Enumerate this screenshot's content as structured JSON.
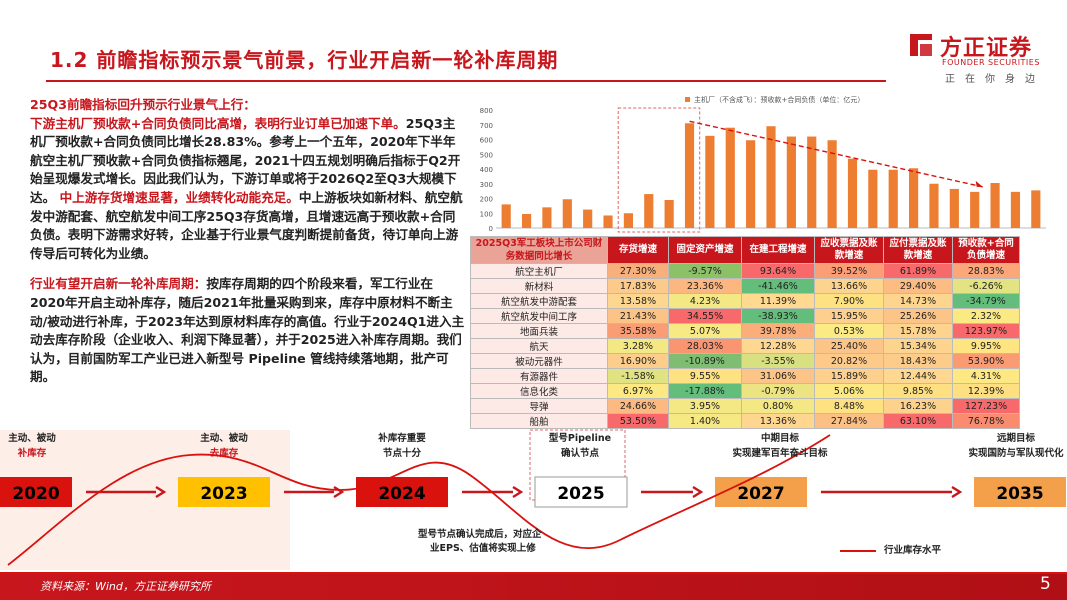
{
  "header": {
    "title": "1.2 前瞻指标预示景气前景，行业开启新一轮补库周期",
    "logo_name": "方正证券",
    "logo_en": "FOUNDER SECURITIES",
    "slogan": "正在你身边"
  },
  "text": {
    "p1_heading": "25Q3前瞻指标回升预示行业景气上行：",
    "p1_red": "下游主机厂预收款+合同负债同比高增，表明行业订单已加速下单。",
    "p1_body": "25Q3主机厂预收款+合同负债同比增长28.83%。参考上一个五年，2020年下半年航空主机厂预收款+合同负债指标翘尾，2021十四五规划明确后指标于Q2开始呈现爆发式增长。因此我们认为，下游订单或将于2026Q2至Q3大规模下达。",
    "p2_red": "中上游存货增速显著，业绩转化动能充足。",
    "p2_body": "中上游板块如新材料、航空航发中游配套、航空航发中间工序25Q3存货高增，且增速远高于预收款+合同负债。表明下游需求好转，企业基于行业景气度判断提前备货，待订单向上游传导后可转化为业绩。",
    "p3_red": "行业有望开启新一轮补库周期：",
    "p3_body": "按库存周期的四个阶段来看，军工行业在2020年开启主动补库存，随后2021年批量采购到来，库存中原材料不断主动/被动进行补库，于2023年达到原材料库存的高值。行业于2024Q1进入主动去库存阶段（企业收入、利润下降显著），并于2025进入补库存周期。我们认为，目前国防军工产业已进入新型号 Pipeline 管线持续落地期，批产可期。"
  },
  "chart_data": {
    "type": "bar",
    "legend": "主机厂（不含成飞）：预收款+合同负债（单位：亿元）",
    "color": "#ed7d31",
    "values": [
      160,
      95,
      140,
      195,
      125,
      85,
      100,
      230,
      190,
      710,
      625,
      680,
      595,
      690,
      620,
      620,
      595,
      470,
      395,
      395,
      405,
      300,
      265,
      245,
      305,
      245,
      255
    ],
    "ylim": [
      0,
      800
    ],
    "yticks": [
      0,
      100,
      200,
      300,
      400,
      500,
      600,
      700,
      800
    ]
  },
  "table": {
    "header": [
      "2025Q3军工板块上市公司财务数据同比增长",
      "存货增速",
      "固定资产增速",
      "在建工程增速",
      "应收票据及账款增速",
      "应付票据及账款增速",
      "预收款+合同负债增速"
    ],
    "rows": [
      {
        "label": "航空主机厂",
        "cells": [
          "27.30%",
          "-9.57%",
          "93.64%",
          "39.52%",
          "61.89%",
          "28.83%"
        ],
        "colors": [
          "#f7b07c",
          "#8cc168",
          "#f8696b",
          "#fb9d75",
          "#f8696b",
          "#fba77a"
        ]
      },
      {
        "label": "新材料",
        "cells": [
          "17.83%",
          "23.36%",
          "-41.46%",
          "13.66%",
          "29.40%",
          "-6.26%"
        ],
        "colors": [
          "#fccb8c",
          "#fcb67f",
          "#63be7b",
          "#fdd48e",
          "#fcbc82",
          "#e3e383"
        ]
      },
      {
        "label": "航空航发中游配套",
        "cells": [
          "13.58%",
          "4.23%",
          "11.39%",
          "7.90%",
          "14.73%",
          "-34.79%"
        ],
        "colors": [
          "#fdd78f",
          "#f4e884",
          "#fed98f",
          "#fee282",
          "#fed58f",
          "#63be7b"
        ]
      },
      {
        "label": "航空航发中间工序",
        "cells": [
          "21.43%",
          "34.55%",
          "-38.93%",
          "15.95%",
          "25.26%",
          "2.32%"
        ],
        "colors": [
          "#fcc387",
          "#f8696b",
          "#63be7b",
          "#fdd08d",
          "#fcc487",
          "#fbe983"
        ]
      },
      {
        "label": "地面兵装",
        "cells": [
          "35.58%",
          "5.07%",
          "39.78%",
          "0.53%",
          "15.78%",
          "123.97%"
        ],
        "colors": [
          "#fa9c74",
          "#f7e983",
          "#fbad7a",
          "#fcea84",
          "#fdd38e",
          "#f8696b"
        ]
      },
      {
        "label": "航天",
        "cells": [
          "3.28%",
          "28.03%",
          "12.28%",
          "25.40%",
          "15.34%",
          "9.95%"
        ],
        "colors": [
          "#f3e883",
          "#fa9572",
          "#fed890",
          "#fcc487",
          "#fdd48e",
          "#fee582"
        ]
      },
      {
        "label": "被动元器件",
        "cells": [
          "16.90%",
          "-10.89%",
          "-3.55%",
          "20.82%",
          "18.43%",
          "53.90%"
        ],
        "colors": [
          "#fdce8b",
          "#7fbe72",
          "#d9e082",
          "#fdca8a",
          "#fdcc8b",
          "#fb9b74"
        ]
      },
      {
        "label": "有源器件",
        "cells": [
          "-1.58%",
          "9.55%",
          "31.06%",
          "15.89%",
          "12.44%",
          "4.31%"
        ],
        "colors": [
          "#e1e383",
          "#fee282",
          "#fcc487",
          "#fdd08d",
          "#fed890",
          "#fde883"
        ]
      },
      {
        "label": "信息化类",
        "cells": [
          "6.97%",
          "-17.88%",
          "-0.79%",
          "5.06%",
          "9.85%",
          "12.39%"
        ],
        "colors": [
          "#fde983",
          "#63be7b",
          "#ece483",
          "#fde983",
          "#fee082",
          "#fee082"
        ]
      },
      {
        "label": "导弹",
        "cells": [
          "24.66%",
          "3.95%",
          "0.80%",
          "8.48%",
          "16.23%",
          "127.23%"
        ],
        "colors": [
          "#fcba82",
          "#f4e884",
          "#f3e883",
          "#fee282",
          "#fdd28d",
          "#f8696b"
        ]
      },
      {
        "label": "船舶",
        "cells": [
          "53.50%",
          "1.40%",
          "13.36%",
          "27.84%",
          "63.10%",
          "76.78%"
        ],
        "colors": [
          "#f8696b",
          "#f6e883",
          "#fed690",
          "#fcc085",
          "#f8696b",
          "#f98b6f"
        ]
      }
    ]
  },
  "timeline": {
    "years": [
      {
        "year": "2020",
        "above": [
          "主动、被动",
          "补库存"
        ],
        "fill": "#d9120e",
        "text": "#000000"
      },
      {
        "year": "2023",
        "above": [
          "主动、被动",
          "去库存"
        ],
        "fill": "#ffc000",
        "text": "#000000"
      },
      {
        "year": "2024",
        "above": [
          "补库存重要",
          "节点十分"
        ],
        "fill": "#d9120e",
        "text": "#000000"
      },
      {
        "year": "2025",
        "above": [
          "型号Pipeline",
          "确认节点"
        ],
        "fill": "#ffffff",
        "text": "#000000"
      },
      {
        "year": "2027",
        "above": [
          "中期目标",
          "实现建军百年奋斗目标"
        ],
        "fill": "#f4a04a",
        "text": "#000000"
      },
      {
        "year": "2035",
        "above": [
          "远期目标",
          "实现国防与军队现代化"
        ],
        "fill": "#f4a04a",
        "text": "#000000"
      }
    ],
    "note": [
      "型号节点确认完成后，对应企",
      "业EPS、估值将实现上修"
    ],
    "legend": "行业库存水平"
  },
  "footer": {
    "source": "资料来源：Wind，方正证券研究所",
    "page": "5"
  }
}
